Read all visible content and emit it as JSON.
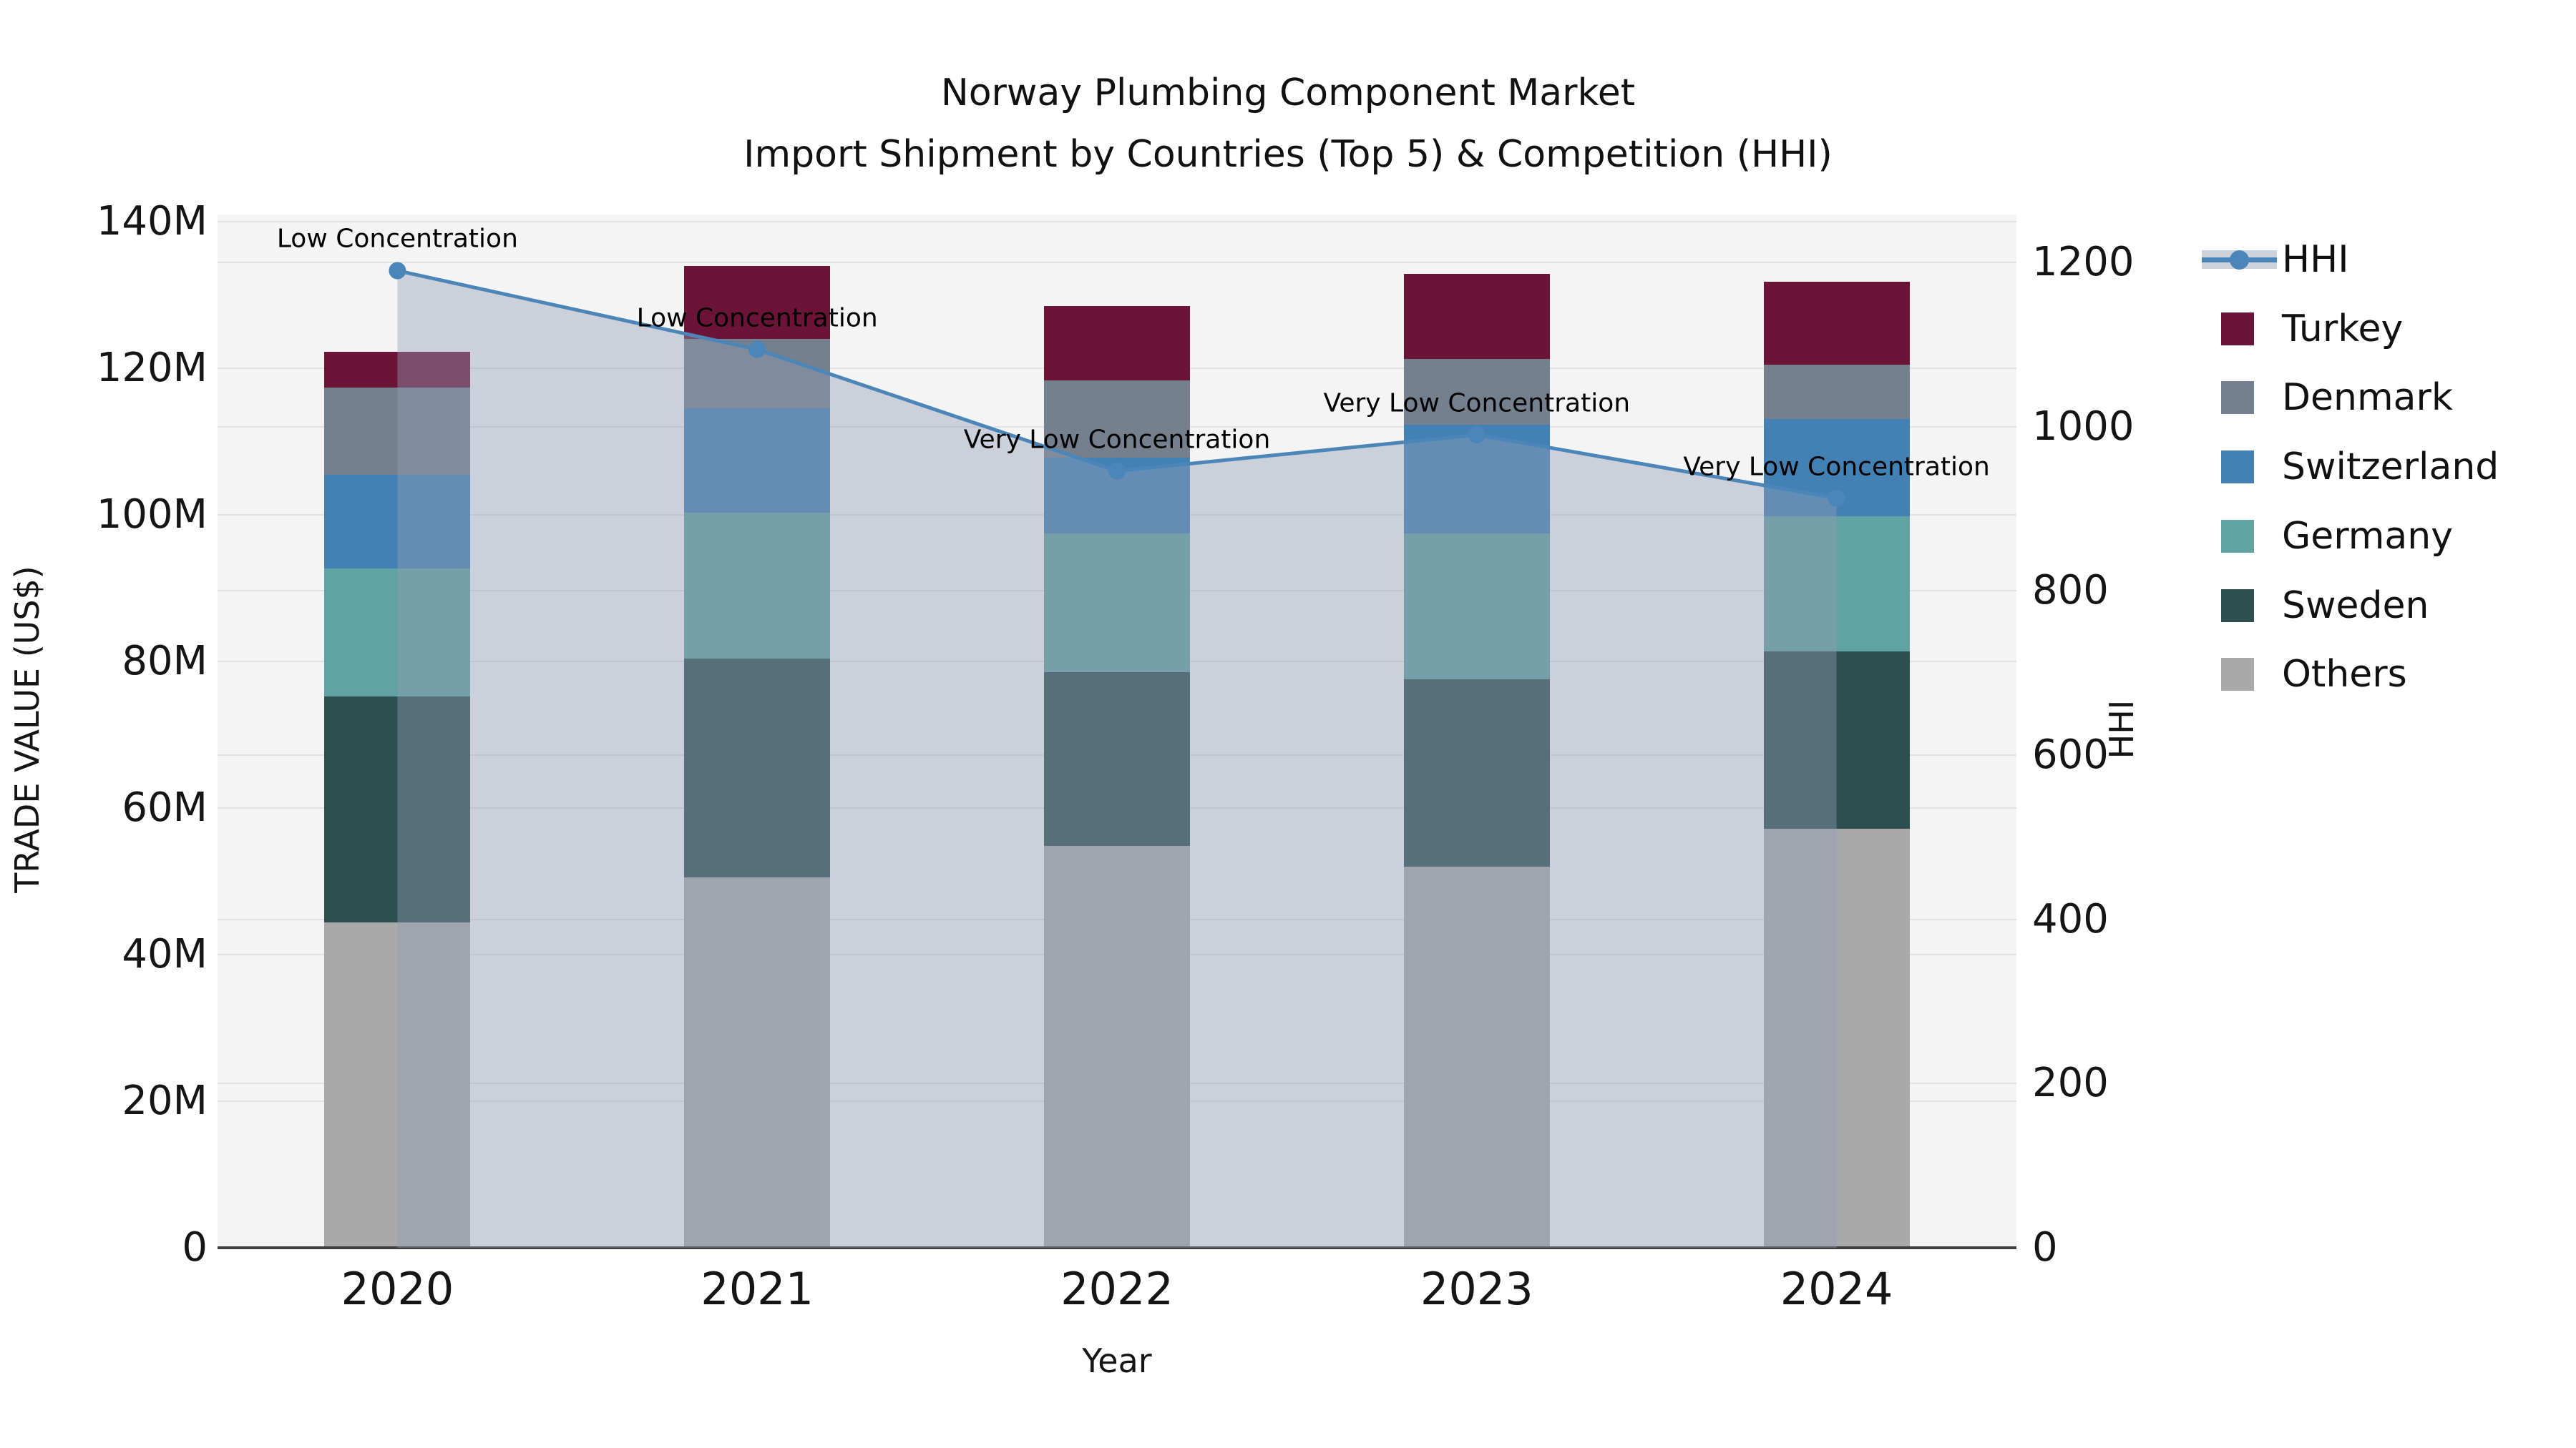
{
  "title": {
    "line1": "Norway Plumbing Component Market",
    "line2": "Import Shipment by Countries (Top 5) & Competition (HHI)"
  },
  "axis_labels": {
    "x": "Year",
    "y_left": "TRADE VALUE (US$)",
    "y_right": "HHI"
  },
  "ticks": {
    "y_left": [
      "0",
      "20M",
      "40M",
      "60M",
      "80M",
      "100M",
      "120M",
      "140M"
    ],
    "y_right": [
      "0",
      "200",
      "400",
      "600",
      "800",
      "1000",
      "1200"
    ]
  },
  "legend": {
    "items": [
      {
        "label": "HHI",
        "type": "line-area",
        "color": "#4c86b8"
      },
      {
        "label": "Turkey",
        "type": "square",
        "color": "#6b1437"
      },
      {
        "label": "Denmark",
        "type": "square",
        "color": "#74808e"
      },
      {
        "label": "Switzerland",
        "type": "square",
        "color": "#4381b5"
      },
      {
        "label": "Germany",
        "type": "square",
        "color": "#61a2a2"
      },
      {
        "label": "Sweden",
        "type": "square",
        "color": "#2d4f4f"
      },
      {
        "label": "Others",
        "type": "square",
        "color": "#a9a9a9"
      }
    ]
  },
  "chart_data": {
    "type": "bar+line",
    "title": "Norway Plumbing Component Market — Import Shipment by Countries (Top 5) & Competition (HHI)",
    "unit": "million US$",
    "xlabel": "Year",
    "ylabel_left": "TRADE VALUE (US$)",
    "ylabel_right": "HHI",
    "categories": [
      "2020",
      "2021",
      "2022",
      "2023",
      "2024"
    ],
    "stack_order_bottom_to_top": [
      "Others",
      "Sweden",
      "Germany",
      "Switzerland",
      "Denmark",
      "Turkey"
    ],
    "series": [
      {
        "name": "Turkey",
        "color": "#6b1437",
        "values": [
          4.8,
          10.0,
          10.2,
          11.6,
          11.3
        ]
      },
      {
        "name": "Denmark",
        "color": "#74808e",
        "values": [
          11.9,
          9.5,
          10.5,
          9.0,
          7.4
        ]
      },
      {
        "name": "Switzerland",
        "color": "#4381b5",
        "values": [
          12.8,
          14.2,
          10.3,
          14.8,
          13.3
        ]
      },
      {
        "name": "Germany",
        "color": "#61a2a2",
        "values": [
          17.5,
          19.9,
          19.0,
          19.9,
          18.4
        ]
      },
      {
        "name": "Sweden",
        "color": "#2d4f4f",
        "values": [
          30.8,
          29.9,
          23.7,
          25.6,
          24.2
        ]
      },
      {
        "name": "Others",
        "color": "#a9a9a9",
        "values": [
          44.4,
          50.5,
          54.8,
          52.0,
          57.2
        ]
      }
    ],
    "stack_totals": [
      122.2,
      134.0,
      128.5,
      132.9,
      131.8
    ],
    "line_series": {
      "name": "HHI",
      "axis": "right",
      "color": "#4c86b8",
      "area_fill": "rgba(145,157,180,0.42)",
      "values": [
        1190,
        1094,
        946,
        990,
        913
      ]
    },
    "point_annotations": [
      "Low Concentration",
      "Low Concentration",
      "Very Low Concentration",
      "Very Low Concentration",
      "Very Low Concentration"
    ],
    "ylim_left_millions": [
      0,
      140
    ],
    "ylim_right": [
      0,
      1200
    ],
    "grid": true,
    "legend_position": "right"
  }
}
